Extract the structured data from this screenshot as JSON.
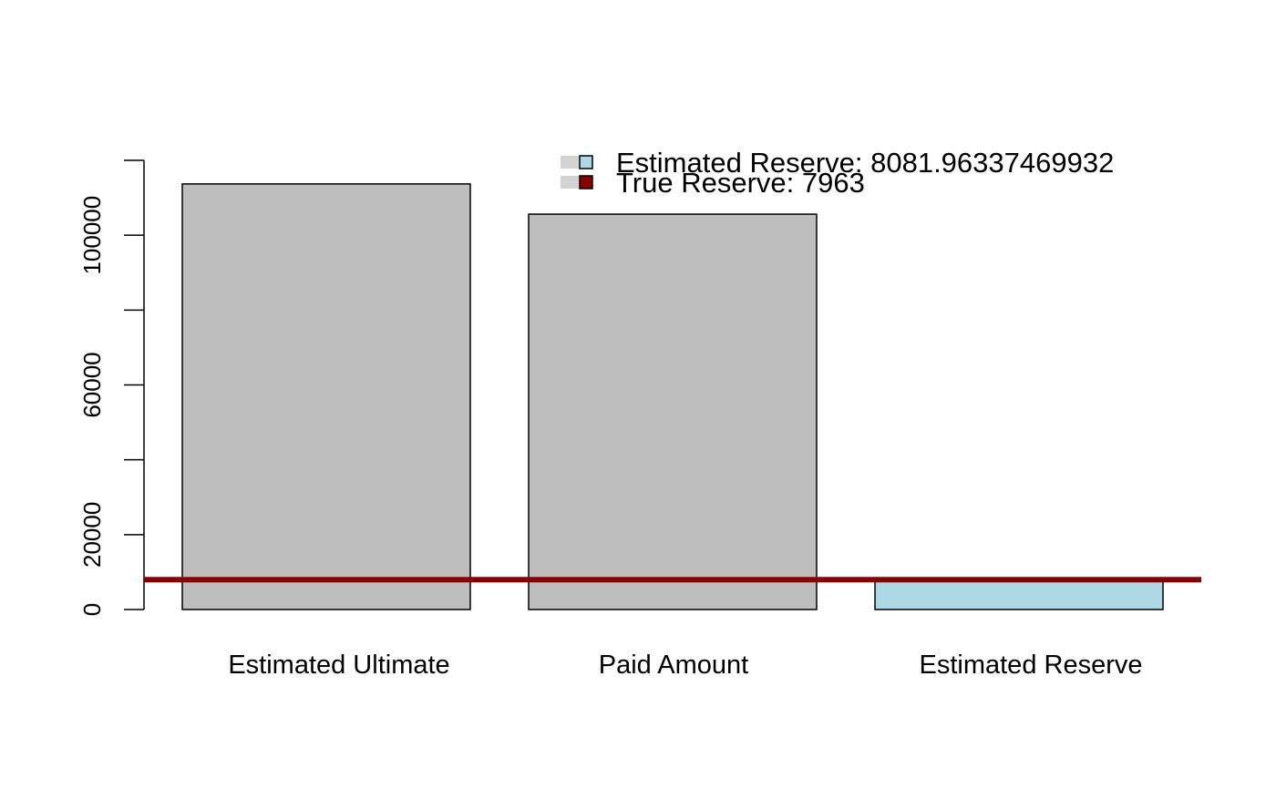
{
  "chart_data": {
    "type": "bar",
    "title": "",
    "xlabel": "",
    "ylabel": "",
    "categories": [
      "Estimated Ultimate",
      "Paid Amount",
      "Estimated Reserve"
    ],
    "values": [
      113700,
      105618,
      8081.96337469932
    ],
    "bar_colors": [
      "#bebebe",
      "#bebebe",
      "#add8e6"
    ],
    "ylim": [
      0,
      120000
    ],
    "yticks": [
      0,
      20000,
      40000,
      60000,
      80000,
      100000,
      120000
    ],
    "ytick_labels": [
      "0",
      "20000",
      "",
      "60000",
      "",
      "100000",
      ""
    ],
    "reference_line": {
      "value": 7963,
      "color": "#8b0000"
    },
    "legend": {
      "placement": "top-right",
      "entries": [
        {
          "label": "Estimated Reserve: 8081.96337469932",
          "color": "#add8e6"
        },
        {
          "label": "True Reserve: 7963",
          "color": "#8b0000"
        }
      ]
    },
    "grid": false
  }
}
